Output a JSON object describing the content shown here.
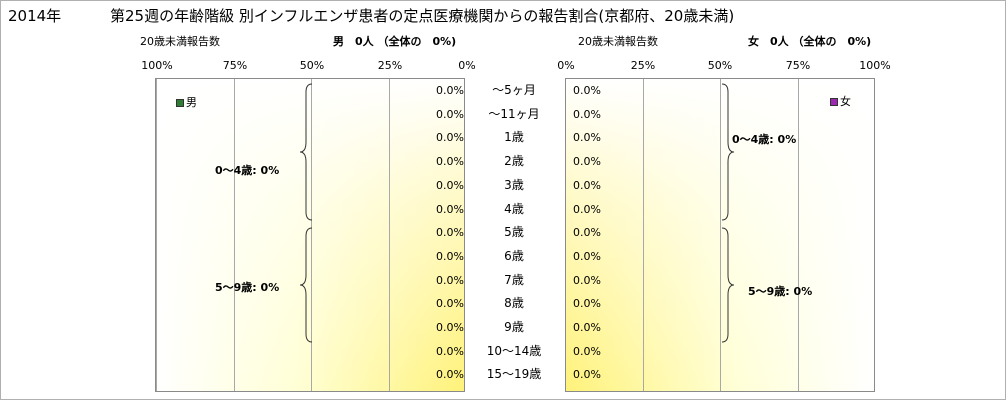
{
  "title": {
    "year": "2014年",
    "main": "第25週の年齢階級 別インフルエンザ患者の定点医療機関からの報告割合(京都府、20歳未満)"
  },
  "male": {
    "subtitle_left": "20歳未満報告数",
    "subtitle_right": "男　0人 （全体の　0%)",
    "legend": "男",
    "legend_color": "#2e7d32",
    "axis_ticks": [
      "100%",
      "75%",
      "50%",
      "25%",
      "0%"
    ],
    "groups": [
      "0～4歳: 0%",
      "5～9歳: 0%"
    ]
  },
  "female": {
    "subtitle_left": "20歳未満報告数",
    "subtitle_right": "女　0人 （全体の　0%)",
    "legend": "女",
    "legend_color": "#9c27b0",
    "axis_ticks": [
      "0%",
      "25%",
      "50%",
      "75%",
      "100%"
    ],
    "groups": [
      "0～4歳: 0%",
      "5～9歳: 0%"
    ]
  },
  "chart_data": {
    "type": "bar",
    "orientation": "horizontal-pyramid",
    "categories": [
      "～5ヶ月",
      "～11ヶ月",
      "1歳",
      "2歳",
      "3歳",
      "4歳",
      "5歳",
      "6歳",
      "7歳",
      "8歳",
      "9歳",
      "10～14歳",
      "15～19歳"
    ],
    "series": [
      {
        "name": "男",
        "values": [
          0,
          0,
          0,
          0,
          0,
          0,
          0,
          0,
          0,
          0,
          0,
          0,
          0
        ],
        "labels": [
          "0.0%",
          "0.0%",
          "0.0%",
          "0.0%",
          "0.0%",
          "0.0%",
          "0.0%",
          "0.0%",
          "0.0%",
          "0.0%",
          "0.0%",
          "0.0%",
          "0.0%"
        ]
      },
      {
        "name": "女",
        "values": [
          0,
          0,
          0,
          0,
          0,
          0,
          0,
          0,
          0,
          0,
          0,
          0,
          0
        ],
        "labels": [
          "0.0%",
          "0.0%",
          "0.0%",
          "0.0%",
          "0.0%",
          "0.0%",
          "0.0%",
          "0.0%",
          "0.0%",
          "0.0%",
          "0.0%",
          "0.0%",
          "0.0%"
        ]
      }
    ],
    "xlim": [
      0,
      100
    ],
    "unit": "%",
    "grid": true
  }
}
